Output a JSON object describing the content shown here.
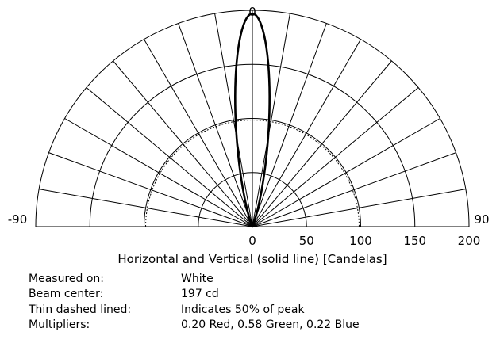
{
  "chart_data": {
    "type": "polar",
    "angle_labels": {
      "top": "0",
      "left": "-90",
      "right": "90"
    },
    "radial_ticks": [
      0,
      50,
      100,
      150,
      200
    ],
    "radial_max": 200,
    "xlabel": "Horizontal and Vertical (solid line) [Candelas]",
    "spoke_step_deg": 10,
    "dashed_circle_value": 98.5,
    "beam_center_cd": 197,
    "beam_half_angle_deg": 9,
    "series": [
      {
        "style": "solid",
        "peak": 197,
        "half_angle_50pct_deg": 9
      }
    ]
  },
  "info": [
    {
      "label": "Measured on:",
      "value": "White"
    },
    {
      "label": "Beam center:",
      "value": "197 cd"
    },
    {
      "label": "Thin dashed lined:",
      "value": "Indicates 50% of peak"
    },
    {
      "label": "Multipliers:",
      "value": "0.20 Red, 0.58 Green, 0.22 Blue"
    }
  ]
}
